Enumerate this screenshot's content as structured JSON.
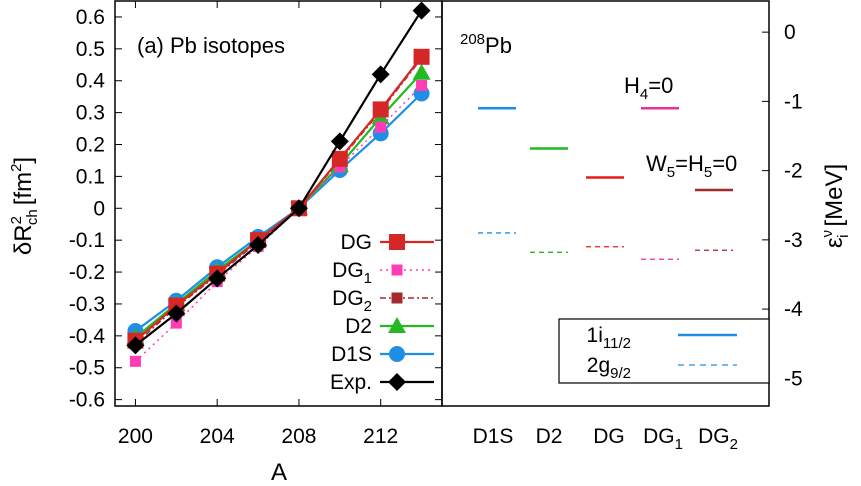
{
  "chart_data": [
    {
      "panel_label": "(a) Pb isotopes",
      "type": "line",
      "xlabel": "A",
      "ylabel_main": "δR",
      "ylabel_sup": "2",
      "ylabel_sub": "ch",
      "ylabel_unit": "[fm",
      "ylabel_unit_sup": "2",
      "ylabel_unit_end": "]",
      "xlim": [
        199,
        215
      ],
      "ylim": [
        -0.62,
        0.65
      ],
      "xticks": [
        200,
        204,
        208,
        212
      ],
      "yticks": [
        -0.6,
        -0.5,
        -0.4,
        -0.3,
        -0.2,
        -0.1,
        0,
        0.1,
        0.2,
        0.3,
        0.4,
        0.5,
        0.6
      ],
      "ytick_labels": [
        "-0.6",
        "-0.5",
        "-0.4",
        "-0.3",
        "-0.2",
        "-0.1",
        "0",
        "0.1",
        "0.2",
        "0.3",
        "0.4",
        "0.5",
        "0.6"
      ],
      "legend_position": "bottom-right",
      "series": [
        {
          "name": "DG",
          "name_sub": "",
          "color": "#d62728",
          "marker": "square",
          "style": "solid",
          "x": [
            200,
            202,
            204,
            206,
            208,
            210,
            212,
            214
          ],
          "y": [
            -0.415,
            -0.305,
            -0.205,
            -0.1,
            0,
            0.155,
            0.31,
            0.475
          ]
        },
        {
          "name": "DG",
          "name_sub": "1",
          "color": "#ff3cb4",
          "marker": "small-square",
          "style": "dotted",
          "x": [
            200,
            202,
            204,
            206,
            208,
            210,
            212,
            214
          ],
          "y": [
            -0.48,
            -0.36,
            -0.23,
            -0.12,
            0,
            0.13,
            0.255,
            0.385
          ]
        },
        {
          "name": "DG",
          "name_sub": "2",
          "color": "#a52a2a",
          "marker": "small-square",
          "style": "dashdot",
          "x": [
            200,
            202,
            204,
            206,
            208,
            210,
            212,
            214
          ],
          "y": [
            -0.425,
            -0.31,
            -0.21,
            -0.105,
            0,
            0.15,
            0.305,
            0.47
          ]
        },
        {
          "name": "D2",
          "name_sub": "",
          "color": "#22b922",
          "marker": "triangle",
          "style": "solid",
          "x": [
            200,
            202,
            204,
            206,
            208,
            210,
            212,
            214
          ],
          "y": [
            -0.405,
            -0.3,
            -0.195,
            -0.1,
            0,
            0.135,
            0.285,
            0.425
          ]
        },
        {
          "name": "D1S",
          "name_sub": "",
          "color": "#1f8fe6",
          "marker": "circle",
          "style": "solid",
          "x": [
            200,
            202,
            204,
            206,
            208,
            210,
            212,
            214
          ],
          "y": [
            -0.385,
            -0.29,
            -0.185,
            -0.09,
            0,
            0.12,
            0.235,
            0.36
          ]
        },
        {
          "name": "Exp.",
          "name_sub": "",
          "color": "#000000",
          "marker": "diamond",
          "style": "solid",
          "x": [
            200,
            202,
            204,
            206,
            208,
            210,
            212,
            214
          ],
          "y": [
            -0.43,
            -0.33,
            -0.22,
            -0.115,
            0,
            0.21,
            0.42,
            0.62
          ]
        }
      ]
    },
    {
      "panel_label_sup": "208",
      "panel_label": "Pb",
      "type": "levels",
      "ylabel_main": "ε",
      "ylabel_sup": "ν",
      "ylabel_sub": "i",
      "ylabel_unit": "[MeV]",
      "ylim": [
        -5.4,
        0.45
      ],
      "yticks": [
        0,
        -1,
        -2,
        -3,
        -4,
        -5
      ],
      "ytick_labels": [
        "0",
        "-1",
        "-2",
        "-3",
        "-4",
        "-5"
      ],
      "categories": [
        {
          "name": "D1S",
          "sub": ""
        },
        {
          "name": "D2",
          "sub": ""
        },
        {
          "name": "DG",
          "sub": ""
        },
        {
          "name": "DG",
          "sub": "1"
        },
        {
          "name": "DG",
          "sub": "2"
        }
      ],
      "levels": [
        {
          "state": "1i11/2",
          "values": [
            -1.1,
            -1.68,
            -2.1,
            -1.1,
            -2.28
          ],
          "colors": [
            "#1f8fe6",
            "#22b922",
            "#e61c1c",
            "#e6309b",
            "#a52a2a"
          ]
        },
        {
          "state": "2g9/2",
          "values": [
            -2.9,
            -3.18,
            -3.1,
            -3.28,
            -3.15
          ],
          "colors": [
            "#1f8fe6",
            "#22b922",
            "#e61c1c",
            "#e6309b",
            "#a52a2a"
          ]
        }
      ],
      "annotations": [
        {
          "text": "H",
          "sub": "4",
          "rest": "=0"
        },
        {
          "text": "W",
          "sub": "5",
          "mid": "=H",
          "sub2": "5",
          "rest": "=0"
        }
      ],
      "legend": [
        {
          "label": "1i",
          "sub": "11/2",
          "style": "solid",
          "color": "#1f8fe6"
        },
        {
          "label": "2g",
          "sub": "9/2",
          "style": "dashed",
          "color": "#1f8fe6"
        }
      ]
    }
  ]
}
